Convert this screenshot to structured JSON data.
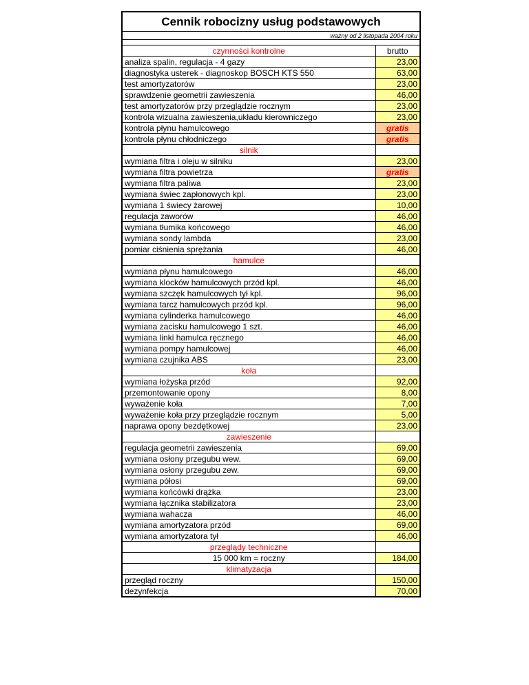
{
  "document": {
    "title": "Cennik robocizny usług podstawowych",
    "subtitle": "ważny od 2 listopada 2004 roku",
    "price_header": "brutto",
    "gratis_label": "gratis"
  },
  "colors": {
    "price_background": "#FFFF99",
    "gratis_background": "#FFCC99",
    "section_text": "#FF0000"
  },
  "sections": [
    {
      "name": "czynności kontrolne",
      "rows": [
        {
          "label": "analiza spalin, regulacja - 4 gazy",
          "price": "23,00"
        },
        {
          "label": "diagnostyka usterek - diagnoskop BOSCH  KTS 550",
          "price": "63,00"
        },
        {
          "label": "test amortyzatorów",
          "price": "23,00"
        },
        {
          "label": "sprawdzenie geometrii zawieszenia",
          "price": "46,00"
        },
        {
          "label": "test amortyzatorów przy przeglądzie rocznym",
          "price": "23,00"
        },
        {
          "label": "kontrola wizualna zawieszenia,układu kierowniczego",
          "price": "23,00"
        },
        {
          "label": "kontrola płynu hamulcowego",
          "gratis": true
        },
        {
          "label": "kontrola płynu chłodniczego",
          "gratis": true
        }
      ]
    },
    {
      "name": "silnik",
      "rows": [
        {
          "label": "wymiana filtra i oleju w silniku",
          "price": "23,00"
        },
        {
          "label": "wymiana filtra powietrza",
          "gratis": true
        },
        {
          "label": "wymiana filtra paliwa",
          "price": "23,00"
        },
        {
          "label": "wymiana świec zapłonowych kpl.",
          "price": "23,00"
        },
        {
          "label": "wymiana 1 świecy żarowej",
          "price": "10,00"
        },
        {
          "label": "regulacja zaworów",
          "price": "46,00"
        },
        {
          "label": "wymiana tłumika końcowego",
          "price": "46,00"
        },
        {
          "label": "wymiana sondy lambda",
          "price": "23,00"
        },
        {
          "label": "pomiar ciśnienia sprężania",
          "price": "46,00"
        }
      ]
    },
    {
      "name": "hamulce",
      "rows": [
        {
          "label": "wymiana płynu hamulcowego",
          "price": "46,00"
        },
        {
          "label": "wymiana klocków hamulcowych przód kpl.",
          "price": "46,00"
        },
        {
          "label": "wymiana szczęk hamulcowych tył kpl.",
          "price": "96,00"
        },
        {
          "label": "wymiana tarcz hamulcowych przód kpl.",
          "price": "96,00"
        },
        {
          "label": "wymiana cylinderka hamulcowego",
          "price": "46,00"
        },
        {
          "label": "wymiana zacisku hamulcowego 1 szt.",
          "price": "46,00"
        },
        {
          "label": "wymiana linki hamulca ręcznego",
          "price": "46,00"
        },
        {
          "label": "wymiana pompy hamulcowej",
          "price": "46,00"
        },
        {
          "label": "wymiana czujnika ABS",
          "price": "23,00"
        }
      ]
    },
    {
      "name": "koła",
      "rows": [
        {
          "label": "wymiana łożyska przód",
          "price": "92,00"
        },
        {
          "label": "przemontowanie opony",
          "price": "8,00"
        },
        {
          "label": "wyważenie koła",
          "price": "7,00"
        },
        {
          "label": "wyważenie koła przy przeglądzie rocznym",
          "price": "5,00"
        },
        {
          "label": "naprawa opony bezdętkowej",
          "price": "23,00"
        }
      ]
    },
    {
      "name": "zawieszenie",
      "rows": [
        {
          "label": "regulacja geometrii zawieszenia",
          "price": "69,00"
        },
        {
          "label": "wymiana osłony przegubu wew.",
          "price": "69,00"
        },
        {
          "label": "wymiana osłony przegubu zew.",
          "price": "69,00"
        },
        {
          "label": "wymiana półosi",
          "price": "69,00"
        },
        {
          "label": "wymiana końcówki drążka",
          "price": "23,00"
        },
        {
          "label": "wymiana łącznika stabilizatora",
          "price": "23,00"
        },
        {
          "label": "wymiana wahacza",
          "price": "46,00"
        },
        {
          "label": "wymiana amortyzatora przód",
          "price": "69,00"
        },
        {
          "label": "wymiana amortyzatora tył",
          "price": "46,00"
        }
      ]
    },
    {
      "name": "przeglądy techniczne",
      "rows": [
        {
          "label": "15 000 km = roczny",
          "price": "184,00",
          "center": true
        }
      ]
    },
    {
      "name": "klimatyzacja",
      "rows": [
        {
          "label": "przegląd roczny",
          "price": "150,00"
        },
        {
          "label": "dezynfekcja",
          "price": "70,00"
        }
      ]
    }
  ]
}
